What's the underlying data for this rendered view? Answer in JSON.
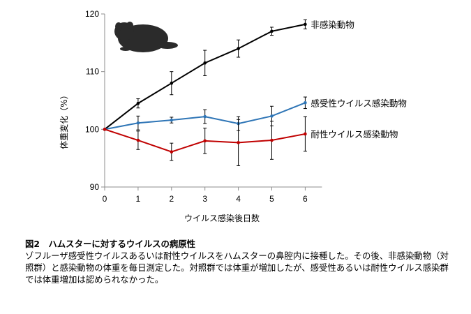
{
  "chart_data": {
    "type": "line",
    "ylabel": "体重変化（%）",
    "xlabel": "ウイルス感染後日数",
    "x": [
      0,
      1,
      2,
      3,
      4,
      5,
      6
    ],
    "xlim": [
      0,
      6.5
    ],
    "ylim": [
      90,
      120
    ],
    "yticks": [
      90,
      100,
      110,
      120
    ],
    "grid": false,
    "series": [
      {
        "name": "非感染動物",
        "color": "#000000",
        "values": [
          100,
          104.5,
          108,
          111.5,
          114,
          117,
          118.2
        ],
        "errors": [
          0,
          0.8,
          2.0,
          2.2,
          1.5,
          0.7,
          0.8
        ]
      },
      {
        "name": "感受性ウイルス感染動物",
        "color": "#2e75b6",
        "values": [
          100,
          101.1,
          101.6,
          102.2,
          101,
          102.3,
          104.6
        ],
        "errors": [
          0,
          1.2,
          0.5,
          1.2,
          1.2,
          1.7,
          1.0
        ]
      },
      {
        "name": "耐性ウイルス感染動物",
        "color": "#c00000",
        "values": [
          100,
          98.1,
          96.1,
          98,
          97.7,
          98.1,
          99.2
        ],
        "errors": [
          0,
          1.6,
          1.5,
          2.2,
          4.0,
          3.3,
          3.0
        ]
      }
    ]
  },
  "figure": {
    "icon": "hamster-silhouette-icon"
  },
  "caption": {
    "title": "図2　ハムスターに対するウイルスの病原性",
    "body": "ゾフルーザ感受性ウイルスあるいは耐性ウイルスをハムスターの鼻腔内に接種した。その後、非感染動物（対照群）と感染動物の体重を毎日測定した。対照群では体重が増加したが、感受性あるいは耐性ウイルス感染群では体重増加は認められなかった。"
  }
}
